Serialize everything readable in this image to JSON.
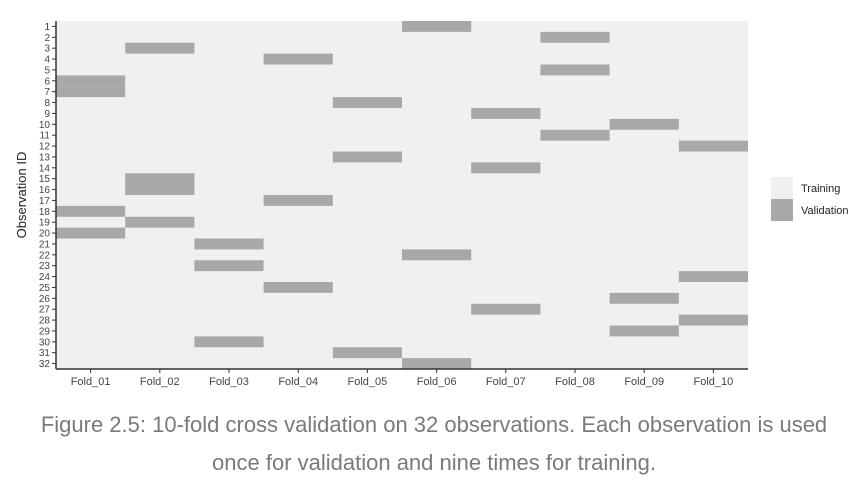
{
  "chart_data": {
    "type": "heatmap",
    "ylabel": "Observation ID",
    "folds": [
      "Fold_01",
      "Fold_02",
      "Fold_03",
      "Fold_04",
      "Fold_05",
      "Fold_06",
      "Fold_07",
      "Fold_08",
      "Fold_09",
      "Fold_10"
    ],
    "observations": [
      1,
      2,
      3,
      4,
      5,
      6,
      7,
      8,
      9,
      10,
      11,
      12,
      13,
      14,
      15,
      16,
      17,
      18,
      19,
      20,
      21,
      22,
      23,
      24,
      25,
      26,
      27,
      28,
      29,
      30,
      31,
      32
    ],
    "validation": {
      "Fold_01": [
        6,
        7,
        18,
        20
      ],
      "Fold_02": [
        3,
        15,
        16,
        19
      ],
      "Fold_03": [
        21,
        23,
        30
      ],
      "Fold_04": [
        4,
        17,
        25
      ],
      "Fold_05": [
        8,
        13,
        31
      ],
      "Fold_06": [
        1,
        22,
        32
      ],
      "Fold_07": [
        9,
        14,
        27
      ],
      "Fold_08": [
        2,
        5,
        11
      ],
      "Fold_09": [
        10,
        26,
        29
      ],
      "Fold_10": [
        12,
        24,
        28
      ]
    },
    "legend": [
      {
        "name": "Training",
        "color": "#f0f0f0"
      },
      {
        "name": "Validation",
        "color": "#a8a8a8"
      }
    ],
    "legend_position": "right",
    "grid": false
  },
  "caption": "Figure 2.5: 10-fold cross validation on 32 observations. Each observation is used once for validation and nine times for training."
}
